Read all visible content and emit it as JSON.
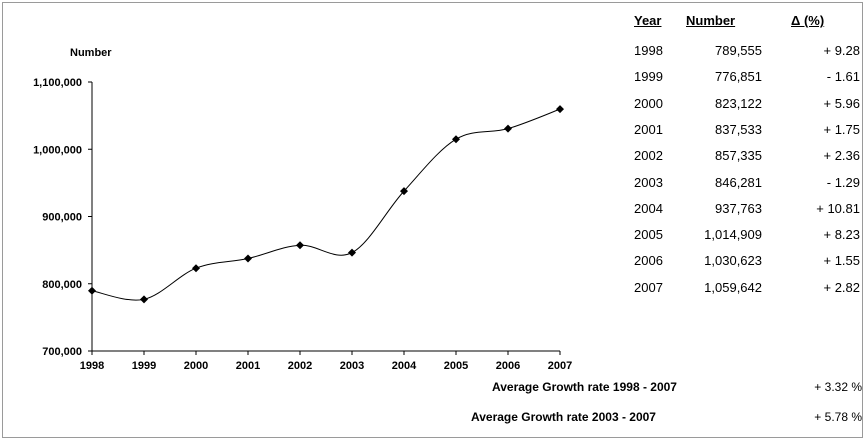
{
  "chart_data": {
    "type": "line",
    "ylabel": "Number",
    "x": [
      "1998",
      "1999",
      "2000",
      "2001",
      "2002",
      "2003",
      "2004",
      "2005",
      "2006",
      "2007"
    ],
    "values": [
      789555,
      776851,
      823122,
      837533,
      857335,
      846281,
      937763,
      1014909,
      1030623,
      1059642
    ],
    "ylim": [
      700000,
      1100000
    ],
    "yticks": [
      "700,000",
      "800,000",
      "900,000",
      "1,000,000",
      "1,100,000"
    ],
    "ytick_values": [
      700000,
      800000,
      900000,
      1000000,
      1100000
    ],
    "grid": false,
    "line_color": "#000000"
  },
  "table": {
    "headers": [
      "Year",
      "Number",
      "Δ (%)"
    ],
    "rows": [
      [
        "1998",
        "789,555",
        "+ 9.28"
      ],
      [
        "1999",
        "776,851",
        "- 1.61"
      ],
      [
        "2000",
        "823,122",
        "+ 5.96"
      ],
      [
        "2001",
        "837,533",
        "+ 1.75"
      ],
      [
        "2002",
        "857,335",
        "+ 2.36"
      ],
      [
        "2003",
        "846,281",
        "- 1.29"
      ],
      [
        "2004",
        "937,763",
        "+ 10.81"
      ],
      [
        "2005",
        "1,014,909",
        "+ 8.23"
      ],
      [
        "2006",
        "1,030,623",
        "+ 1.55"
      ],
      [
        "2007",
        "1,059,642",
        "+ 2.82"
      ]
    ]
  },
  "footer": {
    "avg1_label": "Average Growth rate 1998 - 2007",
    "avg1_value": "+ 3.32 %",
    "avg2_label": "Average Growth rate 2003 - 2007",
    "avg2_value": "+ 5.78 %"
  }
}
